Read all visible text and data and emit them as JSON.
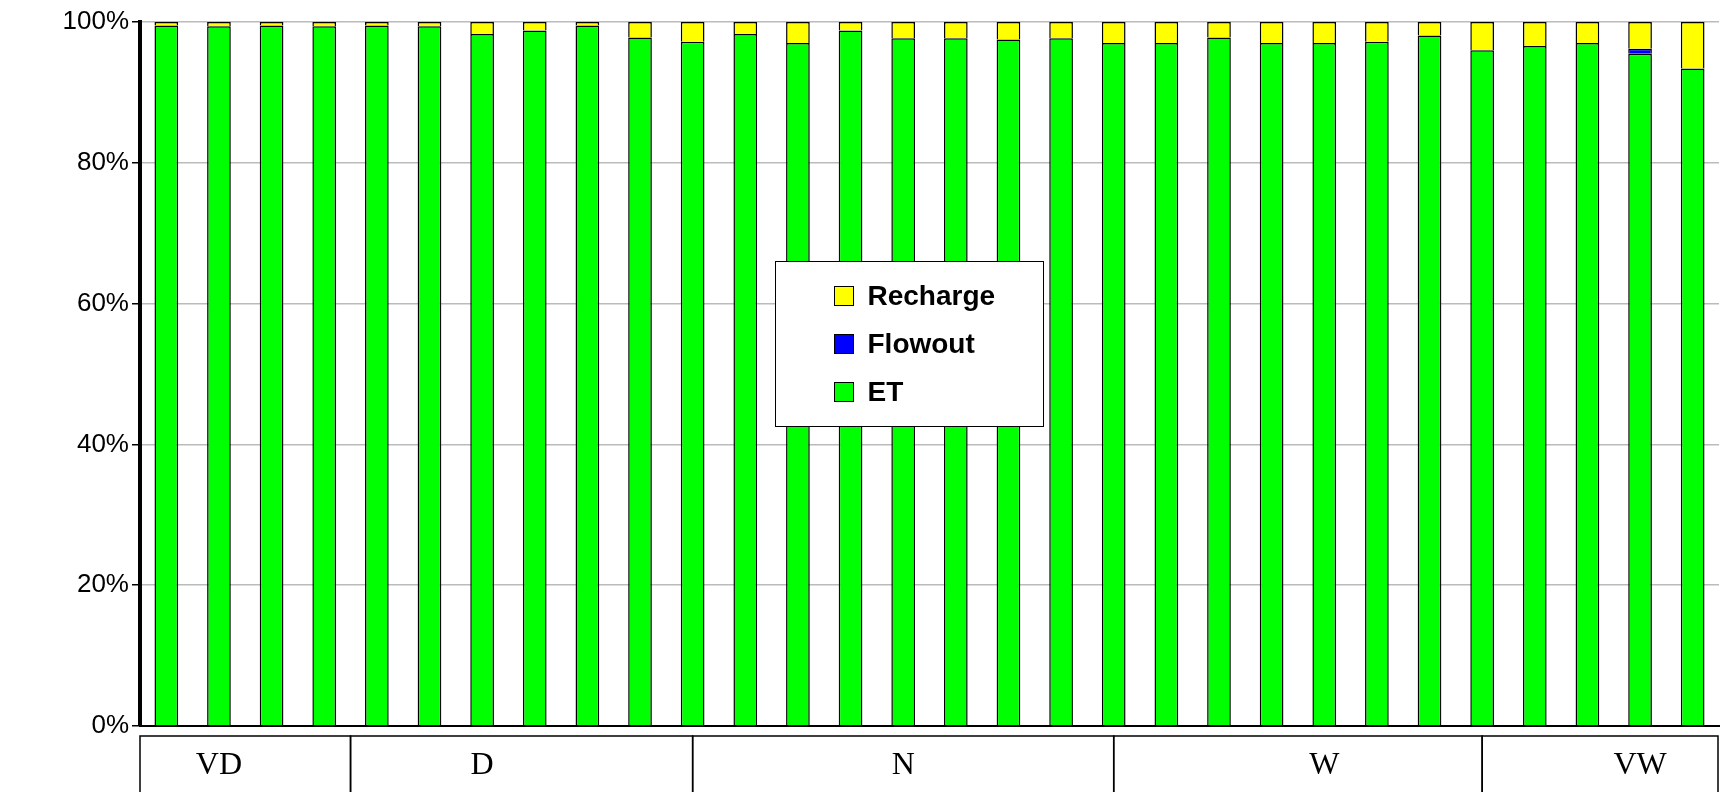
{
  "chart_data": {
    "type": "bar",
    "stacked": true,
    "categories": [
      null,
      "VD",
      null,
      null,
      null,
      null,
      "D",
      null,
      null,
      null,
      null,
      null,
      null,
      null,
      "N",
      null,
      null,
      null,
      null,
      null,
      null,
      null,
      "W",
      null,
      null,
      null,
      null,
      null,
      "VW",
      null
    ],
    "series": [
      {
        "name": "ET",
        "color": "#00ff00",
        "values": [
          99.5,
          99.4,
          99.5,
          99.4,
          99.5,
          99.4,
          98.3,
          98.8,
          99.5,
          97.8,
          97.2,
          98.3,
          97,
          98.8,
          97.7,
          97.7,
          97.5,
          97.7,
          97,
          97,
          97.8,
          97,
          97,
          97.2,
          98.1,
          96,
          96.6,
          97,
          95.5,
          93.4
        ]
      },
      {
        "name": "Flowout",
        "color": "#0000ff",
        "values": [
          null,
          null,
          null,
          null,
          null,
          null,
          null,
          null,
          null,
          null,
          null,
          null,
          null,
          null,
          null,
          null,
          null,
          null,
          null,
          null,
          null,
          null,
          null,
          null,
          null,
          null,
          null,
          null,
          0.7,
          null
        ]
      },
      {
        "name": "Recharge",
        "color": "#ffff00",
        "values": [
          0.5,
          0.6,
          0.5,
          0.6,
          0.5,
          0.6,
          1.7,
          1.2,
          0.5,
          2.2,
          2.8,
          1.7,
          3,
          1.2,
          2.3,
          2.3,
          2.5,
          2.3,
          3,
          3,
          2.2,
          3,
          3,
          2.8,
          1.9,
          4,
          3.4,
          3,
          3.8,
          6.6
        ]
      }
    ],
    "ylim": [
      0,
      100
    ],
    "yticks": [
      {
        "value": 0,
        "label": "0%"
      },
      {
        "value": 20,
        "label": "20%"
      },
      {
        "value": 40,
        "label": "40%"
      },
      {
        "value": 60,
        "label": "60%"
      },
      {
        "value": 80,
        "label": "80%"
      },
      {
        "value": 100,
        "label": "100%"
      }
    ],
    "grid": "y",
    "legend": "center"
  }
}
